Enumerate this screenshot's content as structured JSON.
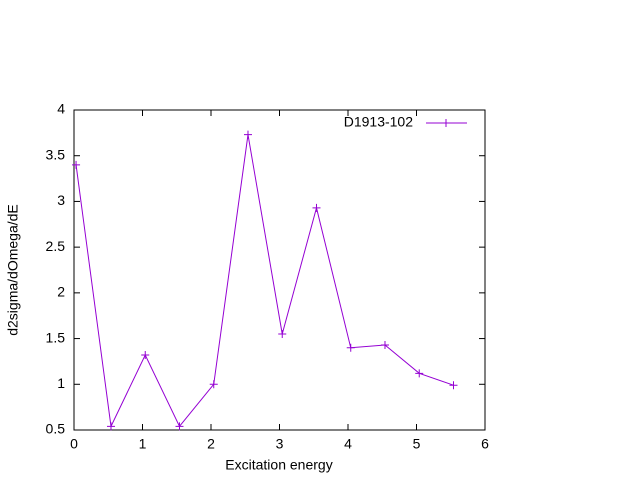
{
  "chart_data": {
    "type": "line",
    "x_label": "Excitation energy",
    "y_label": "d2sigma/dOmega/dE",
    "xlim": [
      0,
      6
    ],
    "xticks": [
      0,
      1,
      2,
      3,
      4,
      5,
      6
    ],
    "ylim": [
      0.5,
      4
    ],
    "yticks": [
      0.5,
      1,
      1.5,
      2,
      2.5,
      3,
      3.5,
      4
    ],
    "legend": "top-right",
    "series": [
      {
        "name": "D1913-102",
        "color": "#9400d3",
        "x": [
          0.03,
          0.54,
          1.04,
          1.54,
          2.04,
          2.54,
          3.04,
          3.54,
          4.04,
          4.54,
          5.04,
          5.54
        ],
        "values": [
          3.4,
          0.54,
          1.32,
          0.54,
          1.0,
          3.73,
          1.55,
          2.93,
          1.4,
          1.43,
          1.12,
          0.99
        ]
      }
    ]
  }
}
